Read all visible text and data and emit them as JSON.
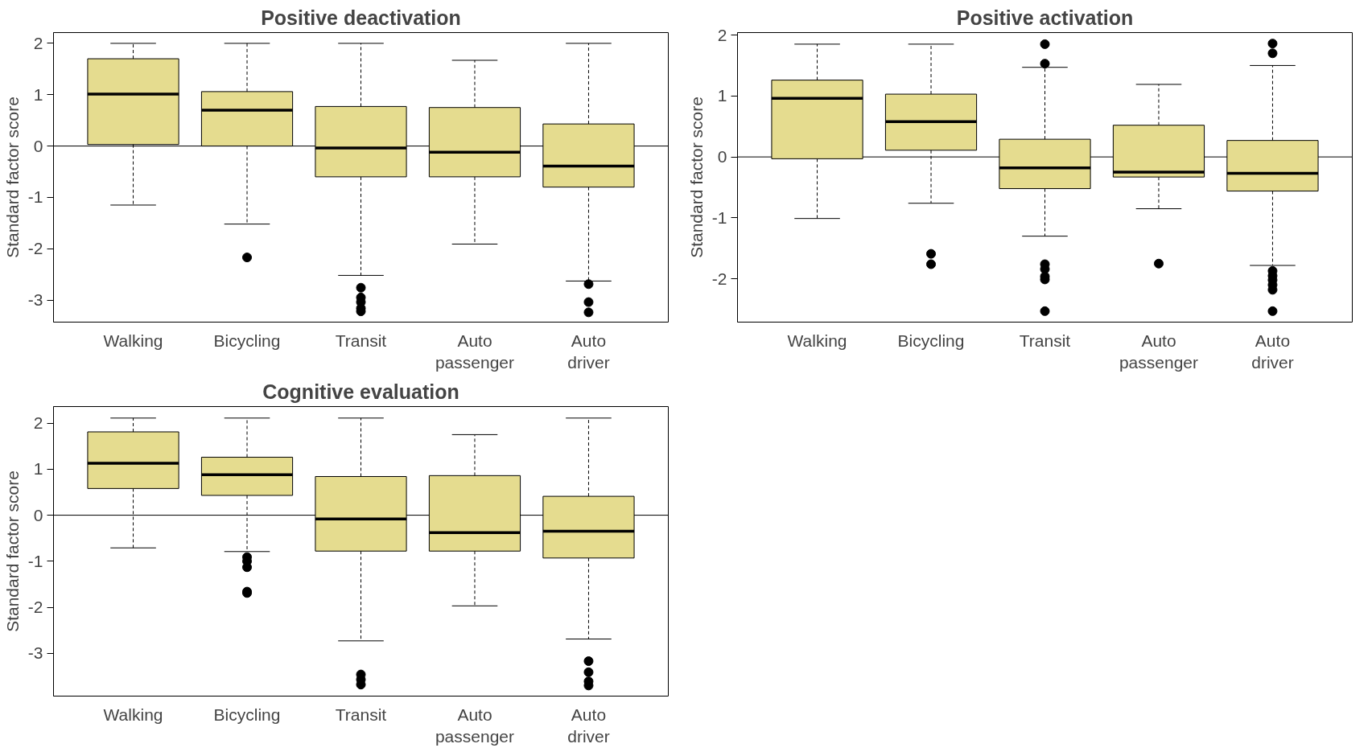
{
  "chart_data": [
    {
      "type": "box",
      "title": "Positive deactivation",
      "ylabel": "Standard factor score",
      "color": "#e5dc8f",
      "categories": [
        "Walking",
        "Bicycling",
        "Transit",
        "Auto\npassenger",
        "Auto\ndriver"
      ],
      "boxes": [
        {
          "low": -1.15,
          "q1": 0.03,
          "median": 1.01,
          "q3": 1.7,
          "high": 2.0
        },
        {
          "low": -1.52,
          "q1": 0.0,
          "median": 0.7,
          "q3": 1.06,
          "high": 2.0,
          "outliers": [
            -2.17
          ]
        },
        {
          "low": -2.52,
          "q1": -0.6,
          "median": -0.04,
          "q3": 0.77,
          "high": 2.0,
          "outliers": [
            -2.76,
            -2.95,
            -3.04,
            -3.16,
            -3.22
          ]
        },
        {
          "low": -1.91,
          "q1": -0.6,
          "median": -0.12,
          "q3": 0.75,
          "high": 1.67
        },
        {
          "low": -2.63,
          "q1": -0.8,
          "median": -0.39,
          "q3": 0.43,
          "high": 2.0,
          "outliers": [
            -2.69,
            -3.04,
            -3.24
          ]
        }
      ],
      "ylim": [
        -3.43,
        2.21
      ],
      "yticks": [
        -3,
        -2,
        -1,
        0,
        1,
        2
      ],
      "ref_lines": [
        {
          "axis": "y",
          "value": 0
        }
      ],
      "grid": false
    },
    {
      "type": "box",
      "title": "Positive activation",
      "ylabel": "Standard factor score",
      "color": "#e5dc8f",
      "categories": [
        "Walking",
        "Bicycling",
        "Transit",
        "Auto\npassenger",
        "Auto\ndriver"
      ],
      "boxes": [
        {
          "low": -1.01,
          "q1": -0.03,
          "median": 0.96,
          "q3": 1.26,
          "high": 1.85
        },
        {
          "low": -0.76,
          "q1": 0.11,
          "median": 0.58,
          "q3": 1.03,
          "high": 1.85,
          "outliers": [
            -1.59,
            -1.76
          ]
        },
        {
          "low": -1.3,
          "q1": -0.52,
          "median": -0.18,
          "q3": 0.29,
          "high": 1.47,
          "outliers": [
            1.85,
            1.53,
            -1.76,
            -1.84,
            -1.96,
            -2.01,
            -2.53
          ]
        },
        {
          "low": -0.85,
          "q1": -0.33,
          "median": -0.25,
          "q3": 0.52,
          "high": 1.19,
          "outliers": [
            -1.75
          ]
        },
        {
          "low": -1.78,
          "q1": -0.56,
          "median": -0.27,
          "q3": 0.27,
          "high": 1.5,
          "outliers": [
            1.86,
            1.7,
            -1.87,
            -1.95,
            -2.02,
            -2.1,
            -2.18,
            -2.53
          ]
        }
      ],
      "ylim": [
        -2.71,
        2.04
      ],
      "yticks": [
        -2,
        -1,
        0,
        1,
        2
      ],
      "ref_lines": [
        {
          "axis": "y",
          "value": 0
        }
      ],
      "grid": false
    },
    {
      "type": "box",
      "title": "Cognitive evaluation",
      "ylabel": "Standard factor score",
      "color": "#e5dc8f",
      "categories": [
        "Walking",
        "Bicycling",
        "Transit",
        "Auto\npassenger",
        "Auto\ndriver"
      ],
      "boxes": [
        {
          "low": -0.71,
          "q1": 0.58,
          "median": 1.13,
          "q3": 1.81,
          "high": 2.11
        },
        {
          "low": -0.79,
          "q1": 0.43,
          "median": 0.88,
          "q3": 1.26,
          "high": 2.11,
          "outliers": [
            -0.91,
            -1.0,
            -1.13,
            -1.66,
            -1.69
          ]
        },
        {
          "low": -2.73,
          "q1": -0.78,
          "median": -0.08,
          "q3": 0.84,
          "high": 2.11,
          "outliers": [
            -3.46,
            -3.57,
            -3.68
          ]
        },
        {
          "low": -1.97,
          "q1": -0.78,
          "median": -0.38,
          "q3": 0.86,
          "high": 1.75
        },
        {
          "low": -2.69,
          "q1": -0.93,
          "median": -0.35,
          "q3": 0.41,
          "high": 2.11,
          "outliers": [
            -3.17,
            -3.41,
            -3.61,
            -3.7
          ]
        }
      ],
      "ylim": [
        -3.93,
        2.36
      ],
      "yticks": [
        -3,
        -2,
        -1,
        0,
        1,
        2
      ],
      "ref_lines": [
        {
          "axis": "y",
          "value": 0
        }
      ],
      "grid": false
    }
  ]
}
